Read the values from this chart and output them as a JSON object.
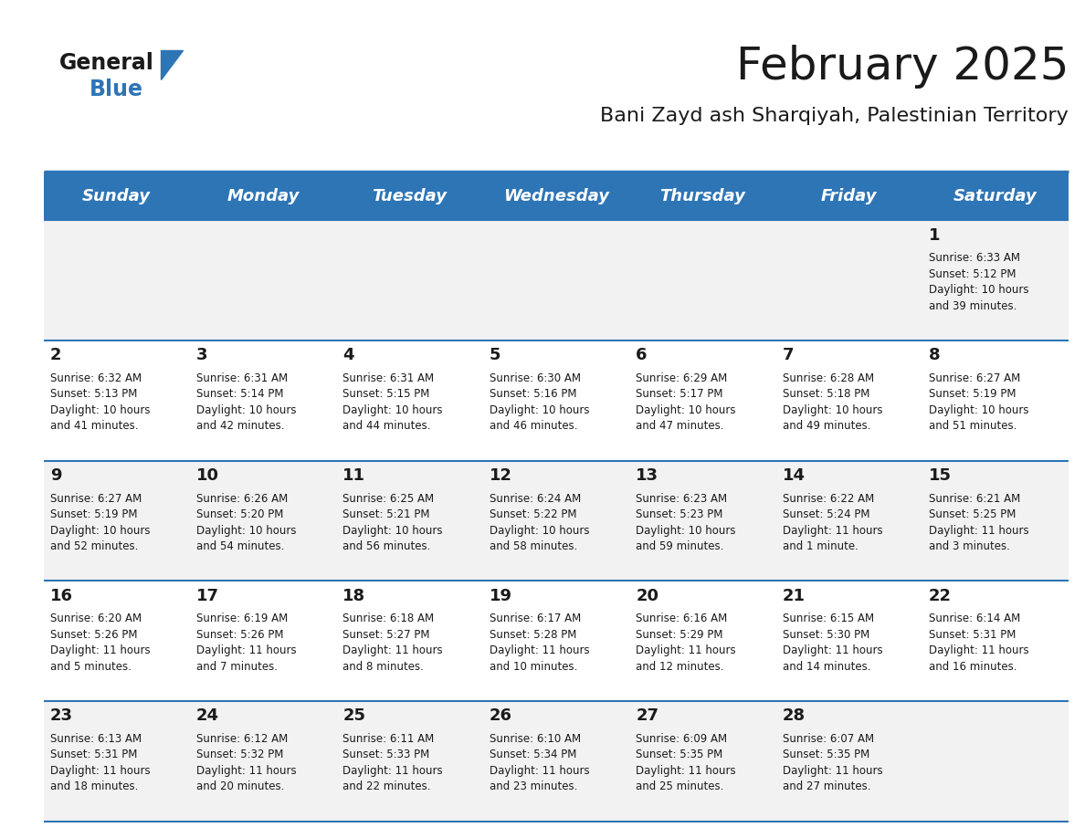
{
  "title": "February 2025",
  "subtitle": "Bani Zayd ash Sharqiyah, Palestinian Territory",
  "header_color": "#2E75B6",
  "header_text_color": "#FFFFFF",
  "background_color": "#FFFFFF",
  "cell_bg_even": "#F2F2F2",
  "cell_bg_odd": "#FFFFFF",
  "separator_color": "#2E75B6",
  "day_names": [
    "Sunday",
    "Monday",
    "Tuesday",
    "Wednesday",
    "Thursday",
    "Friday",
    "Saturday"
  ],
  "title_fontsize": 36,
  "subtitle_fontsize": 16,
  "day_header_fontsize": 13,
  "day_number_fontsize": 13,
  "cell_text_fontsize": 8.5,
  "weeks": [
    [
      {
        "day": null,
        "sunrise": null,
        "sunset": null,
        "daylight": null
      },
      {
        "day": null,
        "sunrise": null,
        "sunset": null,
        "daylight": null
      },
      {
        "day": null,
        "sunrise": null,
        "sunset": null,
        "daylight": null
      },
      {
        "day": null,
        "sunrise": null,
        "sunset": null,
        "daylight": null
      },
      {
        "day": null,
        "sunrise": null,
        "sunset": null,
        "daylight": null
      },
      {
        "day": null,
        "sunrise": null,
        "sunset": null,
        "daylight": null
      },
      {
        "day": 1,
        "sunrise": "6:33 AM",
        "sunset": "5:12 PM",
        "daylight": "10 hours and 39 minutes."
      }
    ],
    [
      {
        "day": 2,
        "sunrise": "6:32 AM",
        "sunset": "5:13 PM",
        "daylight": "10 hours and 41 minutes."
      },
      {
        "day": 3,
        "sunrise": "6:31 AM",
        "sunset": "5:14 PM",
        "daylight": "10 hours and 42 minutes."
      },
      {
        "day": 4,
        "sunrise": "6:31 AM",
        "sunset": "5:15 PM",
        "daylight": "10 hours and 44 minutes."
      },
      {
        "day": 5,
        "sunrise": "6:30 AM",
        "sunset": "5:16 PM",
        "daylight": "10 hours and 46 minutes."
      },
      {
        "day": 6,
        "sunrise": "6:29 AM",
        "sunset": "5:17 PM",
        "daylight": "10 hours and 47 minutes."
      },
      {
        "day": 7,
        "sunrise": "6:28 AM",
        "sunset": "5:18 PM",
        "daylight": "10 hours and 49 minutes."
      },
      {
        "day": 8,
        "sunrise": "6:27 AM",
        "sunset": "5:19 PM",
        "daylight": "10 hours and 51 minutes."
      }
    ],
    [
      {
        "day": 9,
        "sunrise": "6:27 AM",
        "sunset": "5:19 PM",
        "daylight": "10 hours and 52 minutes."
      },
      {
        "day": 10,
        "sunrise": "6:26 AM",
        "sunset": "5:20 PM",
        "daylight": "10 hours and 54 minutes."
      },
      {
        "day": 11,
        "sunrise": "6:25 AM",
        "sunset": "5:21 PM",
        "daylight": "10 hours and 56 minutes."
      },
      {
        "day": 12,
        "sunrise": "6:24 AM",
        "sunset": "5:22 PM",
        "daylight": "10 hours and 58 minutes."
      },
      {
        "day": 13,
        "sunrise": "6:23 AM",
        "sunset": "5:23 PM",
        "daylight": "10 hours and 59 minutes."
      },
      {
        "day": 14,
        "sunrise": "6:22 AM",
        "sunset": "5:24 PM",
        "daylight": "11 hours and 1 minute."
      },
      {
        "day": 15,
        "sunrise": "6:21 AM",
        "sunset": "5:25 PM",
        "daylight": "11 hours and 3 minutes."
      }
    ],
    [
      {
        "day": 16,
        "sunrise": "6:20 AM",
        "sunset": "5:26 PM",
        "daylight": "11 hours and 5 minutes."
      },
      {
        "day": 17,
        "sunrise": "6:19 AM",
        "sunset": "5:26 PM",
        "daylight": "11 hours and 7 minutes."
      },
      {
        "day": 18,
        "sunrise": "6:18 AM",
        "sunset": "5:27 PM",
        "daylight": "11 hours and 8 minutes."
      },
      {
        "day": 19,
        "sunrise": "6:17 AM",
        "sunset": "5:28 PM",
        "daylight": "11 hours and 10 minutes."
      },
      {
        "day": 20,
        "sunrise": "6:16 AM",
        "sunset": "5:29 PM",
        "daylight": "11 hours and 12 minutes."
      },
      {
        "day": 21,
        "sunrise": "6:15 AM",
        "sunset": "5:30 PM",
        "daylight": "11 hours and 14 minutes."
      },
      {
        "day": 22,
        "sunrise": "6:14 AM",
        "sunset": "5:31 PM",
        "daylight": "11 hours and 16 minutes."
      }
    ],
    [
      {
        "day": 23,
        "sunrise": "6:13 AM",
        "sunset": "5:31 PM",
        "daylight": "11 hours and 18 minutes."
      },
      {
        "day": 24,
        "sunrise": "6:12 AM",
        "sunset": "5:32 PM",
        "daylight": "11 hours and 20 minutes."
      },
      {
        "day": 25,
        "sunrise": "6:11 AM",
        "sunset": "5:33 PM",
        "daylight": "11 hours and 22 minutes."
      },
      {
        "day": 26,
        "sunrise": "6:10 AM",
        "sunset": "5:34 PM",
        "daylight": "11 hours and 23 minutes."
      },
      {
        "day": 27,
        "sunrise": "6:09 AM",
        "sunset": "5:35 PM",
        "daylight": "11 hours and 25 minutes."
      },
      {
        "day": 28,
        "sunrise": "6:07 AM",
        "sunset": "5:35 PM",
        "daylight": "11 hours and 27 minutes."
      },
      {
        "day": null,
        "sunrise": null,
        "sunset": null,
        "daylight": null
      }
    ]
  ]
}
